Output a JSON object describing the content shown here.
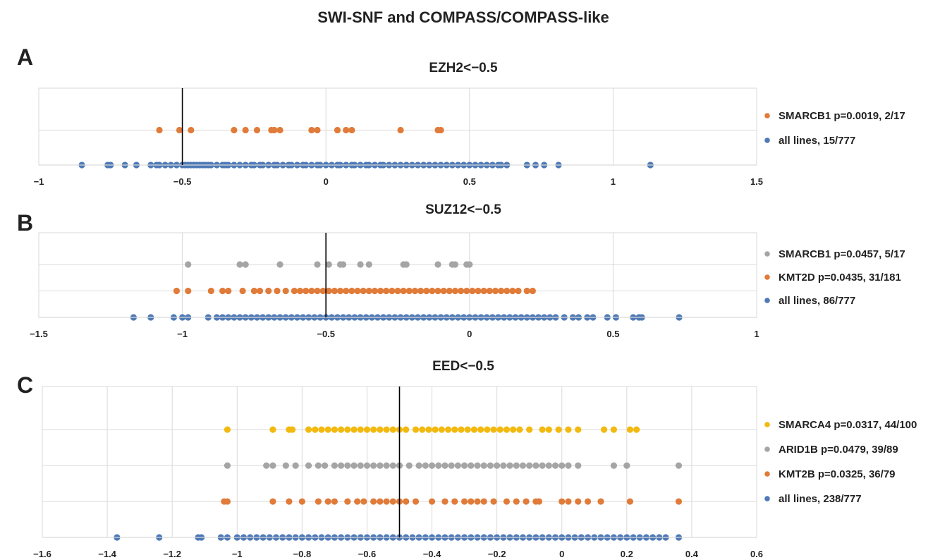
{
  "figure": {
    "title": "SWI-SNF and COMPASS/COMPASS-like"
  },
  "chart_data": [
    {
      "type": "scatter",
      "panel_label": "A",
      "title": "EZH2<−0.5",
      "xlim": [
        -1,
        1.5
      ],
      "xticks": [
        -1,
        -0.5,
        0,
        0.5,
        1,
        1.5
      ],
      "tick_labels": [
        "−1",
        "−0.5",
        "0",
        "0.5",
        "1",
        "1.5"
      ],
      "threshold": -0.5,
      "grid": true,
      "legend_position": "right",
      "series": [
        {
          "name": "SMARCB1 p=0.0019, 2/17",
          "color": "#E07B39",
          "x": [
            -0.58,
            -0.51,
            -0.47,
            -0.32,
            -0.28,
            -0.24,
            -0.19,
            -0.18,
            -0.16,
            -0.05,
            -0.03,
            0.04,
            0.07,
            0.09,
            0.26,
            0.39,
            0.4
          ]
        },
        {
          "name": "all lines, 15/777",
          "color": "#4E79B6",
          "x_density": "dense",
          "x": [
            -0.85,
            -0.76,
            -0.75,
            -0.7,
            -0.66,
            -0.61,
            -0.59,
            -0.58,
            -0.56,
            -0.54,
            -0.52,
            -0.5,
            -0.49,
            -0.48,
            -0.47,
            -0.46,
            -0.45,
            -0.44,
            -0.43,
            -0.42,
            -0.41,
            -0.4,
            -0.38,
            -0.36,
            -0.35,
            -0.34,
            -0.32,
            -0.3,
            -0.28,
            -0.26,
            -0.25,
            -0.23,
            -0.22,
            -0.2,
            -0.18,
            -0.17,
            -0.15,
            -0.13,
            -0.12,
            -0.1,
            -0.08,
            -0.07,
            -0.05,
            -0.03,
            -0.02,
            0.0,
            0.02,
            0.04,
            0.05,
            0.07,
            0.09,
            0.1,
            0.12,
            0.14,
            0.15,
            0.17,
            0.19,
            0.2,
            0.22,
            0.24,
            0.26,
            0.28,
            0.3,
            0.32,
            0.34,
            0.36,
            0.38,
            0.4,
            0.42,
            0.44,
            0.46,
            0.48,
            0.5,
            0.52,
            0.54,
            0.56,
            0.58,
            0.6,
            0.61,
            0.63,
            0.7,
            0.73,
            0.76,
            0.81,
            1.13
          ]
        }
      ]
    },
    {
      "type": "scatter",
      "panel_label": "B",
      "title": "SUZ12<−0.5",
      "xlim": [
        -1.5,
        1
      ],
      "xticks": [
        -1.5,
        -1,
        -0.5,
        0,
        0.5,
        1
      ],
      "tick_labels": [
        "−1.5",
        "−1",
        "−0.5",
        "0",
        "0.5",
        "1"
      ],
      "threshold": -0.5,
      "grid": true,
      "legend_position": "right",
      "series": [
        {
          "name": "SMARCB1 p=0.0457, 5/17",
          "color": "#A5A5A5",
          "x": [
            -0.98,
            -0.8,
            -0.78,
            -0.66,
            -0.53,
            -0.49,
            -0.45,
            -0.44,
            -0.38,
            -0.35,
            -0.23,
            -0.22,
            -0.11,
            -0.05,
            -0.01,
            0.0,
            -0.06
          ]
        },
        {
          "name": "KMT2D p=0.0435, 31/181",
          "color": "#E07B39",
          "x": [
            -1.02,
            -0.98,
            -0.9,
            -0.86,
            -0.84,
            -0.79,
            -0.75,
            -0.73,
            -0.7,
            -0.67,
            -0.64,
            -0.61,
            -0.59,
            -0.57,
            -0.55,
            -0.53,
            -0.51,
            -0.49,
            -0.47,
            -0.45,
            -0.43,
            -0.41,
            -0.39,
            -0.37,
            -0.35,
            -0.33,
            -0.31,
            -0.29,
            -0.27,
            -0.25,
            -0.23,
            -0.21,
            -0.19,
            -0.17,
            -0.15,
            -0.13,
            -0.11,
            -0.09,
            -0.07,
            -0.05,
            -0.03,
            -0.01,
            0.01,
            0.03,
            0.05,
            0.07,
            0.09,
            0.11,
            0.13,
            0.15,
            0.17,
            0.2,
            0.22
          ]
        },
        {
          "name": "all lines, 86/777",
          "color": "#4E79B6",
          "x": [
            -1.17,
            -1.11,
            -1.03,
            -1.0,
            -0.98,
            -0.91,
            -0.88,
            -0.86,
            -0.84,
            -0.82,
            -0.8,
            -0.78,
            -0.76,
            -0.74,
            -0.72,
            -0.7,
            -0.68,
            -0.66,
            -0.64,
            -0.62,
            -0.6,
            -0.58,
            -0.56,
            -0.54,
            -0.52,
            -0.5,
            -0.48,
            -0.46,
            -0.44,
            -0.42,
            -0.4,
            -0.38,
            -0.36,
            -0.34,
            -0.32,
            -0.3,
            -0.28,
            -0.26,
            -0.24,
            -0.22,
            -0.2,
            -0.18,
            -0.16,
            -0.14,
            -0.12,
            -0.1,
            -0.08,
            -0.06,
            -0.04,
            -0.02,
            0.0,
            0.02,
            0.04,
            0.06,
            0.08,
            0.1,
            0.12,
            0.14,
            0.16,
            0.18,
            0.2,
            0.22,
            0.24,
            0.26,
            0.28,
            0.3,
            0.33,
            0.36,
            0.38,
            0.41,
            0.43,
            0.48,
            0.51,
            0.57,
            0.59,
            0.6,
            0.73
          ]
        }
      ]
    },
    {
      "type": "scatter",
      "panel_label": "C",
      "title": "EED<−0.5",
      "xlim": [
        -1.6,
        0.6
      ],
      "xticks": [
        -1.6,
        -1.4,
        -1.2,
        -1,
        -0.8,
        -0.6,
        -0.4,
        -0.2,
        0,
        0.2,
        0.4,
        0.6
      ],
      "tick_labels": [
        "−1.6",
        "−1.4",
        "−1.2",
        "−1",
        "−0.8",
        "−0.6",
        "−0.4",
        "−0.2",
        "0",
        "0.2",
        "0.4",
        "0.6"
      ],
      "threshold": -0.5,
      "grid": true,
      "legend_position": "right",
      "series": [
        {
          "name": "SMARCA4 p=0.0317, 44/100",
          "color": "#F2B90F",
          "x": [
            -1.03,
            -0.89,
            -0.84,
            -0.83,
            -0.78,
            -0.76,
            -0.74,
            -0.72,
            -0.7,
            -0.68,
            -0.66,
            -0.64,
            -0.62,
            -0.6,
            -0.58,
            -0.56,
            -0.54,
            -0.52,
            -0.5,
            -0.48,
            -0.45,
            -0.43,
            -0.41,
            -0.39,
            -0.37,
            -0.35,
            -0.33,
            -0.31,
            -0.29,
            -0.27,
            -0.25,
            -0.23,
            -0.21,
            -0.19,
            -0.17,
            -0.15,
            -0.13,
            -0.1,
            -0.06,
            -0.04,
            -0.01,
            0.02,
            0.05,
            0.13,
            0.16,
            0.21,
            0.23
          ]
        },
        {
          "name": "ARID1B p=0.0479, 39/89",
          "color": "#A5A5A5",
          "x": [
            -1.03,
            -0.91,
            -0.89,
            -0.85,
            -0.82,
            -0.78,
            -0.75,
            -0.73,
            -0.7,
            -0.68,
            -0.66,
            -0.64,
            -0.62,
            -0.6,
            -0.58,
            -0.56,
            -0.54,
            -0.52,
            -0.5,
            -0.47,
            -0.44,
            -0.42,
            -0.4,
            -0.38,
            -0.36,
            -0.34,
            -0.32,
            -0.3,
            -0.28,
            -0.26,
            -0.24,
            -0.22,
            -0.2,
            -0.18,
            -0.16,
            -0.14,
            -0.12,
            -0.1,
            -0.08,
            -0.06,
            -0.04,
            -0.02,
            0.0,
            0.02,
            0.05,
            0.16,
            0.2,
            0.36
          ]
        },
        {
          "name": "KMT2B p=0.0325, 36/79",
          "color": "#E07B39",
          "x": [
            -1.04,
            -1.03,
            -0.89,
            -0.84,
            -0.8,
            -0.75,
            -0.72,
            -0.7,
            -0.66,
            -0.63,
            -0.61,
            -0.58,
            -0.56,
            -0.54,
            -0.52,
            -0.5,
            -0.48,
            -0.45,
            -0.4,
            -0.36,
            -0.33,
            -0.3,
            -0.28,
            -0.26,
            -0.24,
            -0.21,
            -0.17,
            -0.14,
            -0.11,
            -0.08,
            -0.07,
            0.0,
            0.02,
            0.05,
            0.08,
            0.12,
            0.21,
            0.36
          ]
        },
        {
          "name": "all lines, 238/777",
          "color": "#4E79B6",
          "x": [
            -1.37,
            -1.24,
            -1.12,
            -1.11,
            -1.05,
            -1.03,
            -1.0,
            -0.98,
            -0.96,
            -0.94,
            -0.92,
            -0.9,
            -0.88,
            -0.86,
            -0.84,
            -0.82,
            -0.8,
            -0.78,
            -0.76,
            -0.74,
            -0.72,
            -0.7,
            -0.68,
            -0.66,
            -0.64,
            -0.62,
            -0.6,
            -0.58,
            -0.56,
            -0.54,
            -0.52,
            -0.5,
            -0.48,
            -0.46,
            -0.44,
            -0.42,
            -0.4,
            -0.38,
            -0.36,
            -0.34,
            -0.32,
            -0.3,
            -0.28,
            -0.26,
            -0.24,
            -0.22,
            -0.2,
            -0.18,
            -0.16,
            -0.14,
            -0.12,
            -0.1,
            -0.08,
            -0.06,
            -0.04,
            -0.02,
            0.0,
            0.02,
            0.04,
            0.06,
            0.08,
            0.1,
            0.12,
            0.14,
            0.16,
            0.18,
            0.2,
            0.22,
            0.24,
            0.26,
            0.28,
            0.3,
            0.32,
            0.36
          ]
        }
      ]
    }
  ]
}
